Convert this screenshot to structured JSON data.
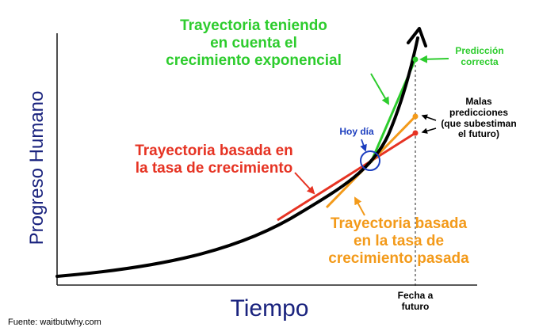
{
  "axes": {
    "y_label": "Progreso Humano",
    "x_label": "Tiempo",
    "future_date_label": "Fecha a\nfuturo"
  },
  "annotations": {
    "exponential": "Trayectoria teniendo\nen cuenta el\ncrecimiento exponencial",
    "correct": "Predicción\ncorrecta",
    "bad": "Malas\npredicciones\n(que subestiman\nel futuro)",
    "today": "Hoy día",
    "rate": "Trayectoria basada en\nla tasa de crecimiento",
    "past_rate": "Trayectoria basada\nen la tasa de\ncrecimiento pasada"
  },
  "source": "Fuente: waitbutwhy.com",
  "colors": {
    "exponential": "#2dcc2d",
    "rate": "#e63323",
    "past_rate": "#f39a1a",
    "today": "#1d3fbf",
    "axis_label": "#1a237e",
    "curve": "#000000"
  }
}
